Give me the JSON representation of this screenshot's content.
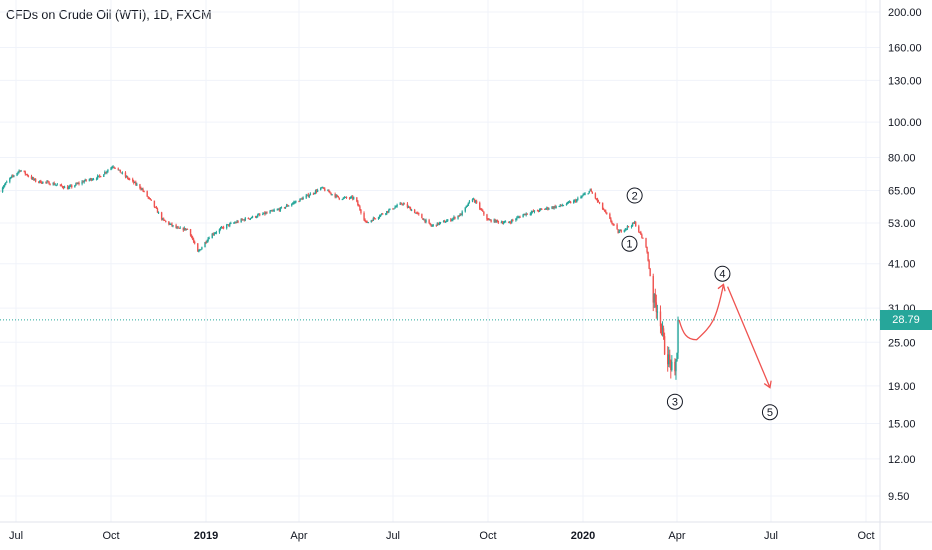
{
  "chart_data": {
    "type": "candlestick",
    "title": "CFDs on Crude Oil (WTI), 1D, FXCM",
    "y_scale": "log",
    "y_ticks": [
      9.5,
      12,
      15,
      19,
      25,
      31,
      41,
      53,
      65,
      80,
      100,
      130,
      160,
      200
    ],
    "y_tick_labels": [
      "9.50",
      "12.00",
      "15.00",
      "19.00",
      "25.00",
      "31.00",
      "41.00",
      "53.00",
      "65.00",
      "80.00",
      "100.00",
      "130.00",
      "160.00",
      "200.00"
    ],
    "x_ticks": [
      {
        "date": "2018-07-01",
        "label": "Jul"
      },
      {
        "date": "2018-10-01",
        "label": "Oct"
      },
      {
        "date": "2019-01-01",
        "label": "2019"
      },
      {
        "date": "2019-04-01",
        "label": "Apr"
      },
      {
        "date": "2019-07-01",
        "label": "Jul"
      },
      {
        "date": "2019-10-01",
        "label": "Oct"
      },
      {
        "date": "2020-01-01",
        "label": "2020"
      },
      {
        "date": "2020-04-01",
        "label": "Apr"
      },
      {
        "date": "2020-07-01",
        "label": "Jul"
      },
      {
        "date": "2020-10-01",
        "label": "Oct"
      }
    ],
    "current_price": 28.79,
    "current_price_label": "28.79",
    "series": {
      "points": [
        [
          "2018-06-15",
          65
        ],
        [
          "2018-06-25",
          70
        ],
        [
          "2018-07-05",
          74
        ],
        [
          "2018-07-20",
          69
        ],
        [
          "2018-08-05",
          68
        ],
        [
          "2018-08-20",
          66
        ],
        [
          "2018-09-05",
          69
        ],
        [
          "2018-09-20",
          71
        ],
        [
          "2018-10-03",
          76
        ],
        [
          "2018-10-15",
          71
        ],
        [
          "2018-10-30",
          66
        ],
        [
          "2018-11-10",
          60
        ],
        [
          "2018-11-20",
          54
        ],
        [
          "2018-12-05",
          51
        ],
        [
          "2018-12-15",
          51
        ],
        [
          "2018-12-24",
          44
        ],
        [
          "2019-01-05",
          49
        ],
        [
          "2019-01-20",
          52
        ],
        [
          "2019-02-05",
          54
        ],
        [
          "2019-02-25",
          56
        ],
        [
          "2019-03-15",
          58
        ],
        [
          "2019-04-05",
          62
        ],
        [
          "2019-04-23",
          66
        ],
        [
          "2019-05-10",
          62
        ],
        [
          "2019-05-25",
          62
        ],
        [
          "2019-06-05",
          53
        ],
        [
          "2019-06-20",
          56
        ],
        [
          "2019-07-10",
          60
        ],
        [
          "2019-07-25",
          56
        ],
        [
          "2019-08-07",
          52
        ],
        [
          "2019-08-25",
          54
        ],
        [
          "2019-09-05",
          56
        ],
        [
          "2019-09-16",
          62
        ],
        [
          "2019-10-01",
          54
        ],
        [
          "2019-10-20",
          53
        ],
        [
          "2019-11-05",
          56
        ],
        [
          "2019-11-25",
          58
        ],
        [
          "2019-12-10",
          59
        ],
        [
          "2019-12-25",
          61
        ],
        [
          "2020-01-08",
          65
        ],
        [
          "2020-01-20",
          58
        ],
        [
          "2020-02-04",
          50
        ],
        [
          "2020-02-15",
          52
        ],
        [
          "2020-02-20",
          53
        ],
        [
          "2020-03-02",
          46
        ],
        [
          "2020-03-09",
          33
        ],
        [
          "2020-03-15",
          30
        ],
        [
          "2020-03-20",
          24
        ],
        [
          "2020-03-25",
          22
        ],
        [
          "2020-03-30",
          20
        ],
        [
          "2020-04-01",
          24
        ],
        [
          "2020-04-02",
          28.79
        ]
      ]
    },
    "projection": {
      "color": "#ef5350",
      "points": [
        [
          "2020-04-03",
          28.79
        ],
        [
          "2020-04-20",
          25.4
        ],
        [
          "2020-05-05",
          27.5
        ],
        [
          "2020-05-16",
          36.0
        ],
        [
          "2020-05-20",
          35.5
        ],
        [
          "2020-06-12",
          25.5
        ],
        [
          "2020-06-30",
          18.8
        ]
      ]
    },
    "wave_labels": [
      {
        "label": "1",
        "date": "2020-02-15",
        "value": 46.5
      },
      {
        "label": "2",
        "date": "2020-02-20",
        "value": 63.0
      },
      {
        "label": "3",
        "date": "2020-03-30",
        "value": 17.2
      },
      {
        "label": "4",
        "date": "2020-05-15",
        "value": 38.5
      },
      {
        "label": "5",
        "date": "2020-06-30",
        "value": 16.1
      }
    ],
    "colors": {
      "up": "#26a69a",
      "down": "#ef5350",
      "price_line": "#26a69a",
      "grid": "#f0f3fa"
    }
  }
}
